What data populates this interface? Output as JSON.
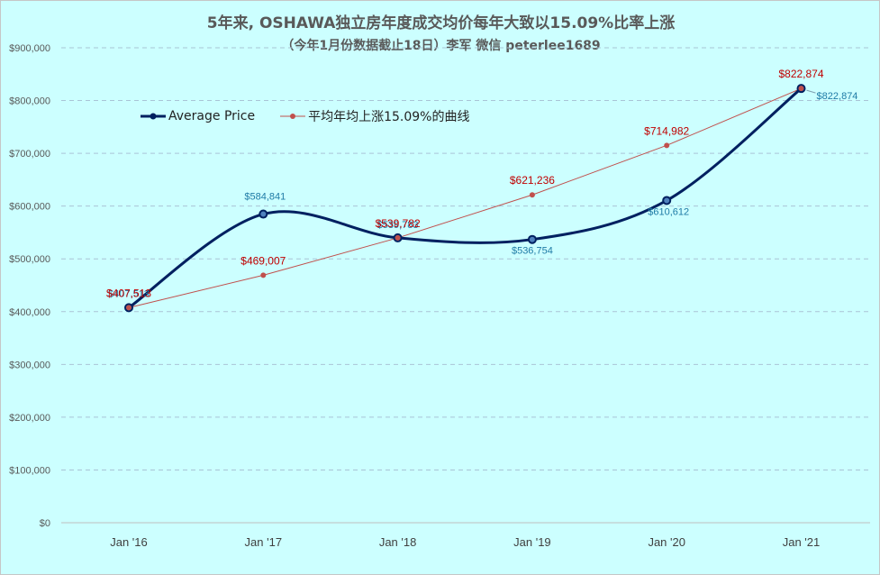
{
  "title": "5年来, OSHAWA独立房年度成交均价每年大致以15.09%比率上涨",
  "subtitle": "（今年1月份数据截止18日）李军 微信 peterlee1689",
  "colors": {
    "background": "#ccffff",
    "average_price": "#002060",
    "trend_line": "#c0504d",
    "average_label": "#1f7ba6",
    "trend_label": "#c00000"
  },
  "chart_data": {
    "type": "line",
    "categories": [
      "Jan '16",
      "Jan '17",
      "Jan '18",
      "Jan '19",
      "Jan '20",
      "Jan '21"
    ],
    "series": [
      {
        "name": "Average Price",
        "values": [
          407513,
          584841,
          539783,
          536754,
          610612,
          822874
        ],
        "labels": [
          "$407,513",
          "$584,841",
          "$539,783",
          "$536,754",
          "$610,612",
          "$822,874"
        ],
        "smooth": true
      },
      {
        "name": "平均年均上涨15.09%的曲线",
        "values": [
          407513,
          469007,
          539782,
          621236,
          714982,
          822874
        ],
        "labels": [
          "$407,513",
          "$469,007",
          "$539,782",
          "$621,236",
          "$714,982",
          "$822,874"
        ],
        "smooth": false
      }
    ],
    "y_ticks": [
      0,
      100000,
      200000,
      300000,
      400000,
      500000,
      600000,
      700000,
      800000,
      900000
    ],
    "y_tick_labels": [
      "$0",
      "$100,000",
      "$200,000",
      "$300,000",
      "$400,000",
      "$500,000",
      "$600,000",
      "$700,000",
      "$800,000",
      "$900,000"
    ],
    "ylim": [
      0,
      900000
    ],
    "grid": "horizontal dashed",
    "legend_position": "top-left"
  }
}
